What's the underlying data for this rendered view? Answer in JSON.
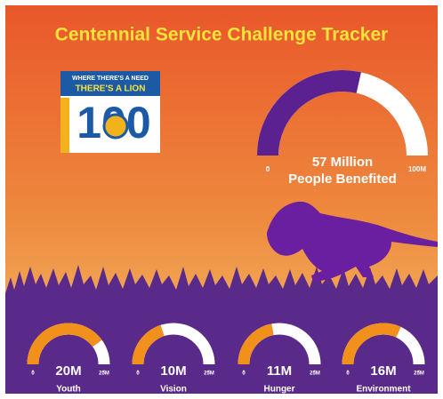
{
  "title": "Centennial Service Challenge Tracker",
  "logo": {
    "lines": [
      "WHERE THERE'S A NEED",
      "THERE'S A LION"
    ],
    "number": "100"
  },
  "chart_data": [
    {
      "type": "gauge",
      "values": [
        57
      ],
      "value_labels": [
        "57 Million"
      ],
      "caption": "People Benefited",
      "ylim": [
        0,
        100
      ],
      "yticks": [
        0,
        {
          "value": 100,
          "label": "100M"
        }
      ],
      "color": "#5c2191",
      "track_color": "#ffffff"
    },
    {
      "type": "gauge",
      "categories": [
        "Youth"
      ],
      "values": [
        20
      ],
      "value_labels": [
        "20M"
      ],
      "ylim": [
        0,
        25
      ],
      "yticks": [
        0,
        {
          "value": 25,
          "label": "25M"
        }
      ],
      "color": "#f2901c",
      "track_color": "#ffffff"
    },
    {
      "type": "gauge",
      "categories": [
        "Vision"
      ],
      "values": [
        10
      ],
      "value_labels": [
        "10M"
      ],
      "ylim": [
        0,
        25
      ],
      "yticks": [
        0,
        {
          "value": 25,
          "label": "25M"
        }
      ],
      "color": "#f2901c",
      "track_color": "#ffffff"
    },
    {
      "type": "gauge",
      "categories": [
        "Hunger"
      ],
      "values": [
        11
      ],
      "value_labels": [
        "11M"
      ],
      "ylim": [
        0,
        25
      ],
      "yticks": [
        0,
        {
          "value": 25,
          "label": "25M"
        }
      ],
      "color": "#f2901c",
      "track_color": "#ffffff"
    },
    {
      "type": "gauge",
      "categories": [
        "Environment"
      ],
      "values": [
        16
      ],
      "value_labels": [
        "16M"
      ],
      "ylim": [
        0,
        25
      ],
      "yticks": [
        0,
        {
          "value": 25,
          "label": "25M"
        }
      ],
      "color": "#f2901c",
      "track_color": "#ffffff"
    }
  ]
}
